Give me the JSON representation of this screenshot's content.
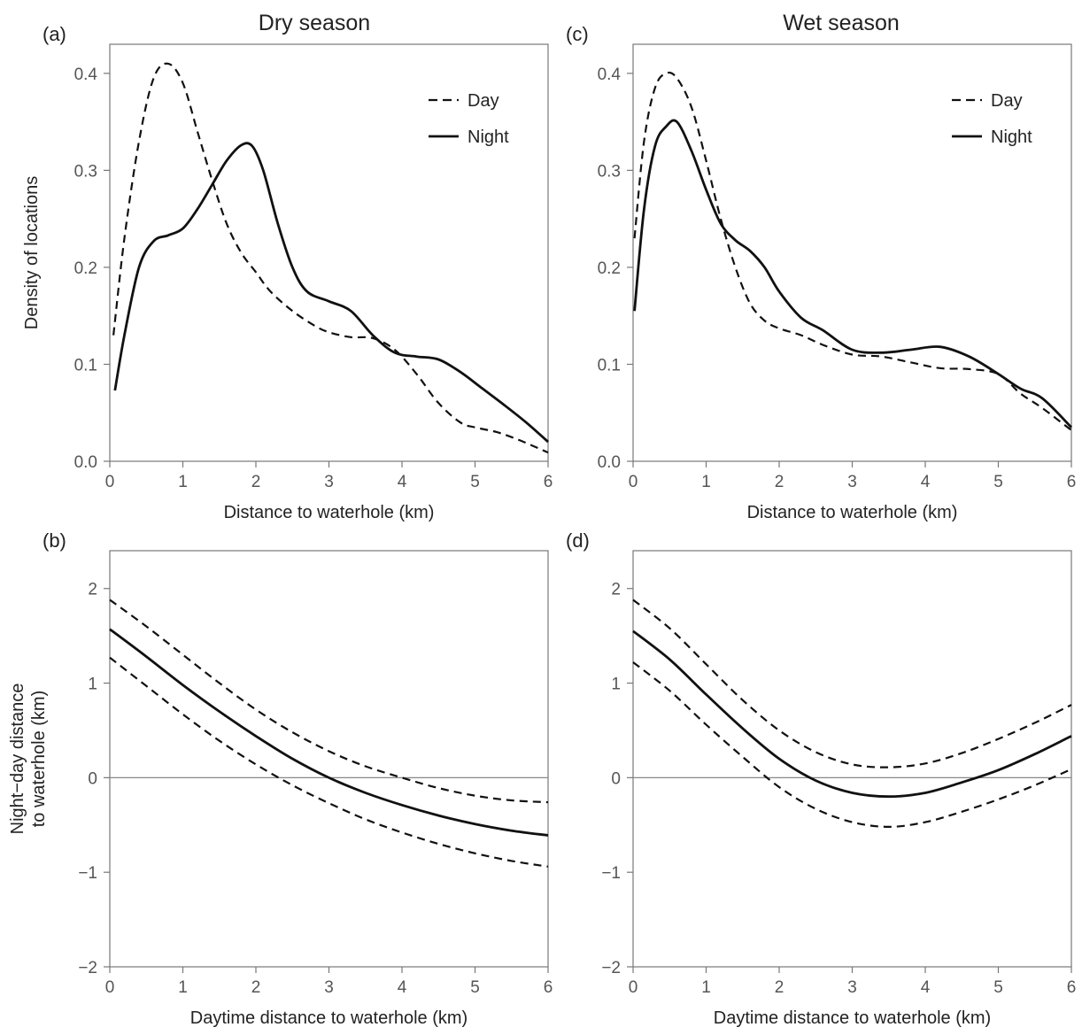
{
  "figure": {
    "column_titles": [
      "Dry season",
      "Wet season"
    ]
  },
  "chart_data": [
    {
      "panel": "(a)",
      "type": "line",
      "title": "Dry season",
      "xlabel": "Distance to waterhole (km)",
      "ylabel": "Density of locations",
      "xlim": [
        0,
        6
      ],
      "ylim": [
        0,
        0.43
      ],
      "xticks": [
        "0",
        "1",
        "2",
        "3",
        "4",
        "5",
        "6"
      ],
      "yticks": [
        "0.0",
        "0.1",
        "0.2",
        "0.3",
        "0.4"
      ],
      "ytick_values": [
        0,
        0.1,
        0.2,
        0.3,
        0.4
      ],
      "legend": {
        "position": "top-right",
        "entries": [
          "Day",
          "Night"
        ]
      },
      "series": [
        {
          "name": "Day",
          "style": "dashed",
          "x": [
            0.05,
            0.2,
            0.4,
            0.6,
            0.8,
            1.0,
            1.2,
            1.4,
            1.6,
            1.8,
            2.0,
            2.2,
            2.5,
            2.8,
            3.0,
            3.3,
            3.6,
            3.9,
            4.2,
            4.5,
            4.8,
            5.0,
            5.3,
            5.6,
            6.0
          ],
          "y": [
            0.13,
            0.23,
            0.33,
            0.395,
            0.41,
            0.39,
            0.34,
            0.29,
            0.245,
            0.215,
            0.195,
            0.175,
            0.155,
            0.14,
            0.133,
            0.128,
            0.127,
            0.115,
            0.09,
            0.06,
            0.04,
            0.035,
            0.03,
            0.022,
            0.009
          ]
        },
        {
          "name": "Night",
          "style": "solid",
          "x": [
            0.07,
            0.2,
            0.4,
            0.6,
            0.8,
            1.0,
            1.2,
            1.4,
            1.6,
            1.8,
            1.95,
            2.1,
            2.3,
            2.5,
            2.7,
            3.0,
            3.3,
            3.6,
            3.9,
            4.2,
            4.5,
            4.8,
            5.1,
            5.4,
            5.7,
            6.0
          ],
          "y": [
            0.073,
            0.13,
            0.2,
            0.227,
            0.233,
            0.24,
            0.26,
            0.285,
            0.31,
            0.326,
            0.325,
            0.3,
            0.245,
            0.2,
            0.175,
            0.165,
            0.155,
            0.13,
            0.112,
            0.108,
            0.105,
            0.092,
            0.075,
            0.058,
            0.04,
            0.02
          ]
        }
      ]
    },
    {
      "panel": "(b)",
      "type": "line",
      "xlabel": "Daytime distance to waterhole (km)",
      "ylabel": "Night−day distance to waterhole (km)",
      "ylabel_lines": [
        "Night−day distance",
        "to waterhole (km)"
      ],
      "xlim": [
        0,
        6
      ],
      "ylim": [
        -2,
        2.4
      ],
      "xticks": [
        "0",
        "1",
        "2",
        "3",
        "4",
        "5",
        "6"
      ],
      "yticks": [
        "−2",
        "−1",
        "0",
        "1",
        "2"
      ],
      "ytick_values": [
        -2,
        -1,
        0,
        1,
        2
      ],
      "reference_line_y": 0,
      "series": [
        {
          "style": "dashed",
          "x": [
            0,
            0.5,
            1,
            1.5,
            2,
            2.5,
            3,
            3.5,
            4,
            4.5,
            5,
            5.5,
            6
          ],
          "y": [
            1.88,
            1.6,
            1.3,
            1.0,
            0.72,
            0.48,
            0.28,
            0.12,
            0.0,
            -0.11,
            -0.19,
            -0.24,
            -0.26
          ]
        },
        {
          "style": "solid",
          "x": [
            0,
            0.5,
            1,
            1.5,
            2,
            2.5,
            3,
            3.5,
            4,
            4.5,
            5,
            5.5,
            6
          ],
          "y": [
            1.57,
            1.28,
            0.98,
            0.7,
            0.44,
            0.2,
            0.0,
            -0.16,
            -0.29,
            -0.4,
            -0.49,
            -0.56,
            -0.61
          ]
        },
        {
          "style": "dashed",
          "x": [
            0,
            0.5,
            1,
            1.5,
            2,
            2.5,
            3,
            3.5,
            4,
            4.5,
            5,
            5.5,
            6
          ],
          "y": [
            1.27,
            0.97,
            0.67,
            0.39,
            0.14,
            -0.08,
            -0.27,
            -0.44,
            -0.58,
            -0.7,
            -0.8,
            -0.88,
            -0.94
          ]
        }
      ]
    },
    {
      "panel": "(c)",
      "type": "line",
      "title": "Wet season",
      "xlabel": "Distance to waterhole (km)",
      "ylabel": "",
      "xlim": [
        0,
        6
      ],
      "ylim": [
        0,
        0.43
      ],
      "xticks": [
        "0",
        "1",
        "2",
        "3",
        "4",
        "5",
        "6"
      ],
      "yticks": [
        "0.0",
        "0.1",
        "0.2",
        "0.3",
        "0.4"
      ],
      "ytick_values": [
        0,
        0.1,
        0.2,
        0.3,
        0.4
      ],
      "legend": {
        "position": "top-right",
        "entries": [
          "Day",
          "Night"
        ]
      },
      "series": [
        {
          "name": "Day",
          "style": "dashed",
          "x": [
            0.02,
            0.15,
            0.3,
            0.45,
            0.6,
            0.8,
            1.0,
            1.2,
            1.4,
            1.6,
            1.8,
            2.0,
            2.3,
            2.6,
            3.0,
            3.4,
            3.8,
            4.2,
            4.6,
            5.0,
            5.3,
            5.6,
            6.0
          ],
          "y": [
            0.23,
            0.33,
            0.385,
            0.4,
            0.395,
            0.365,
            0.31,
            0.25,
            0.2,
            0.163,
            0.145,
            0.137,
            0.13,
            0.12,
            0.11,
            0.108,
            0.102,
            0.096,
            0.095,
            0.09,
            0.07,
            0.055,
            0.032
          ]
        },
        {
          "name": "Night",
          "style": "solid",
          "x": [
            0.02,
            0.15,
            0.3,
            0.45,
            0.6,
            0.8,
            1.0,
            1.2,
            1.4,
            1.6,
            1.8,
            2.0,
            2.3,
            2.6,
            3.0,
            3.4,
            3.8,
            4.2,
            4.6,
            5.0,
            5.3,
            5.6,
            6.0
          ],
          "y": [
            0.155,
            0.26,
            0.325,
            0.345,
            0.35,
            0.32,
            0.28,
            0.245,
            0.228,
            0.217,
            0.2,
            0.175,
            0.148,
            0.135,
            0.115,
            0.112,
            0.115,
            0.118,
            0.108,
            0.09,
            0.075,
            0.065,
            0.035
          ]
        }
      ]
    },
    {
      "panel": "(d)",
      "type": "line",
      "xlabel": "Daytime distance to waterhole (km)",
      "ylabel": "",
      "xlim": [
        0,
        6
      ],
      "ylim": [
        -2,
        2.4
      ],
      "xticks": [
        "0",
        "1",
        "2",
        "3",
        "4",
        "5",
        "6"
      ],
      "yticks": [
        "−2",
        "−1",
        "0",
        "1",
        "2"
      ],
      "ytick_values": [
        -2,
        -1,
        0,
        1,
        2
      ],
      "reference_line_y": 0,
      "series": [
        {
          "style": "dashed",
          "x": [
            0,
            0.5,
            1,
            1.5,
            2,
            2.5,
            3,
            3.5,
            4,
            4.5,
            5,
            5.5,
            6
          ],
          "y": [
            1.88,
            1.58,
            1.2,
            0.82,
            0.5,
            0.27,
            0.14,
            0.11,
            0.15,
            0.26,
            0.41,
            0.58,
            0.77
          ]
        },
        {
          "style": "solid",
          "x": [
            0,
            0.5,
            1,
            1.5,
            2,
            2.5,
            3,
            3.5,
            4,
            4.5,
            5,
            5.5,
            6
          ],
          "y": [
            1.55,
            1.25,
            0.88,
            0.52,
            0.2,
            -0.03,
            -0.16,
            -0.2,
            -0.16,
            -0.05,
            0.08,
            0.25,
            0.44
          ]
        },
        {
          "style": "dashed",
          "x": [
            0,
            0.5,
            1,
            1.5,
            2,
            2.5,
            3,
            3.5,
            4,
            4.5,
            5,
            5.5,
            6
          ],
          "y": [
            1.22,
            0.92,
            0.56,
            0.22,
            -0.1,
            -0.33,
            -0.47,
            -0.52,
            -0.47,
            -0.36,
            -0.23,
            -0.08,
            0.09
          ]
        }
      ]
    }
  ]
}
